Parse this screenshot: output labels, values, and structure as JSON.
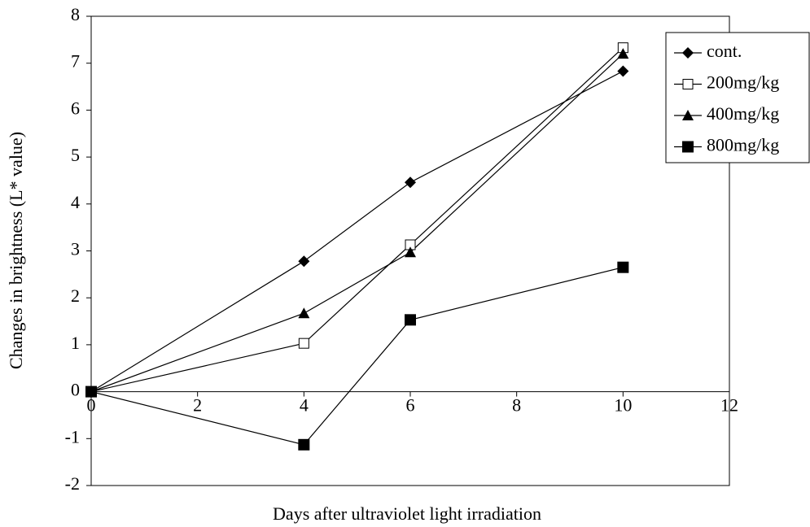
{
  "chart_data": {
    "type": "line",
    "x_label": "Days after ultraviolet light irradiation",
    "y_label": "Changes in brightness (L* value)",
    "x": [
      0,
      4,
      6,
      10
    ],
    "series": [
      {
        "name": "cont.",
        "color": "#000000",
        "marker": "diamond",
        "values": [
          0,
          2.78,
          4.46,
          6.83
        ]
      },
      {
        "name": "200mg/kg",
        "color": "#000000",
        "marker": "square-open",
        "values": [
          0,
          1.03,
          3.13,
          7.33
        ]
      },
      {
        "name": "400mg/kg",
        "color": "#000000",
        "marker": "triangle",
        "values": [
          0,
          1.67,
          2.97,
          7.2
        ]
      },
      {
        "name": "800mg/kg",
        "color": "#000000",
        "marker": "square",
        "values": [
          0,
          -1.13,
          1.53,
          2.65
        ]
      }
    ],
    "xlim": [
      0,
      12
    ],
    "xticks": [
      0,
      2,
      4,
      6,
      8,
      10,
      12
    ],
    "ylim": [
      -2,
      8
    ],
    "yticks": [
      -2,
      -1,
      0,
      1,
      2,
      3,
      4,
      5,
      6,
      7,
      8
    ],
    "legend": "top-right"
  }
}
